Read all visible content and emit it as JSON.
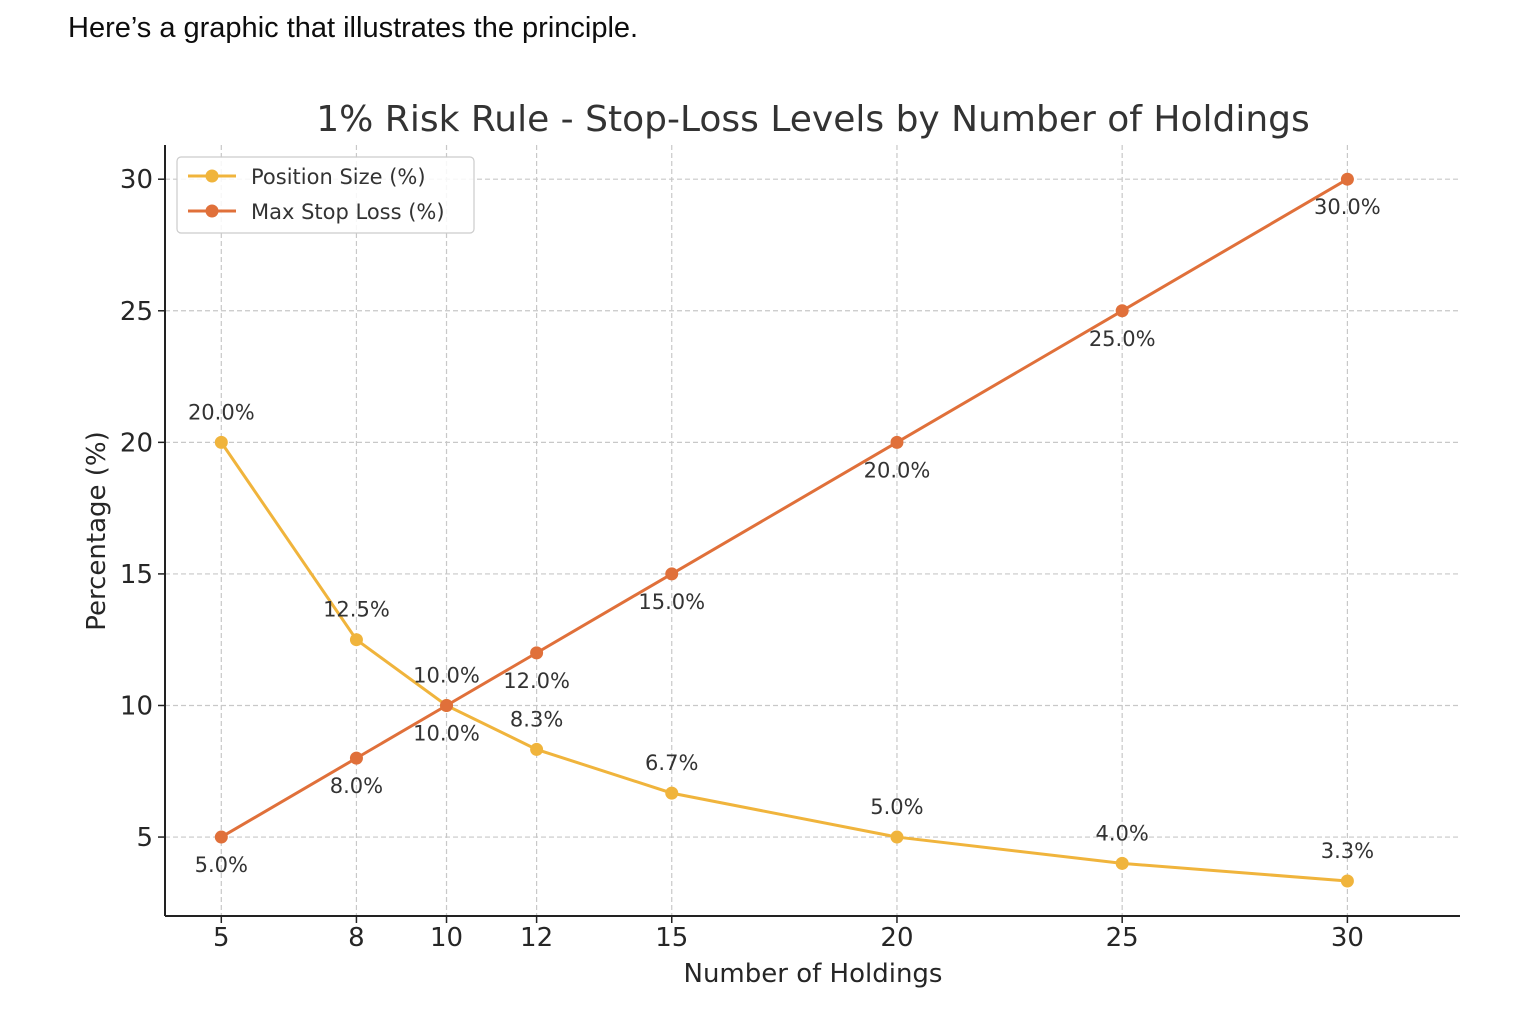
{
  "intro_text": "Here’s a graphic that illustrates the principle.",
  "chart_data": {
    "type": "line",
    "title": "1% Risk Rule - Stop-Loss Levels by Number of Holdings",
    "xlabel": "Number of Holdings",
    "ylabel": "Percentage (%)",
    "x": [
      5,
      8,
      10,
      12,
      15,
      20,
      25,
      30
    ],
    "xticks": [
      5,
      8,
      10,
      12,
      15,
      20,
      25,
      30
    ],
    "yticks": [
      5,
      10,
      15,
      20,
      25,
      30
    ],
    "xlim": [
      3.75,
      32.5
    ],
    "ylim": [
      2.0,
      31.3
    ],
    "grid": true,
    "legend_position": "top-left",
    "series": [
      {
        "name": "Position Size (%)",
        "color": "#f0b43c",
        "values": [
          20.0,
          12.5,
          10.0,
          8.33,
          6.67,
          5.0,
          4.0,
          3.33
        ],
        "labels": [
          "20.0%",
          "12.5%",
          "10.0%",
          "8.3%",
          "6.7%",
          "5.0%",
          "4.0%",
          "3.3%"
        ],
        "label_position": "above"
      },
      {
        "name": "Max Stop Loss (%)",
        "color": "#e0703a",
        "values": [
          5.0,
          8.0,
          10.0,
          12.0,
          15.0,
          20.0,
          25.0,
          30.0
        ],
        "labels": [
          "5.0%",
          "8.0%",
          "10.0%",
          "12.0%",
          "15.0%",
          "20.0%",
          "25.0%",
          "30.0%"
        ],
        "label_position": "below"
      }
    ]
  }
}
